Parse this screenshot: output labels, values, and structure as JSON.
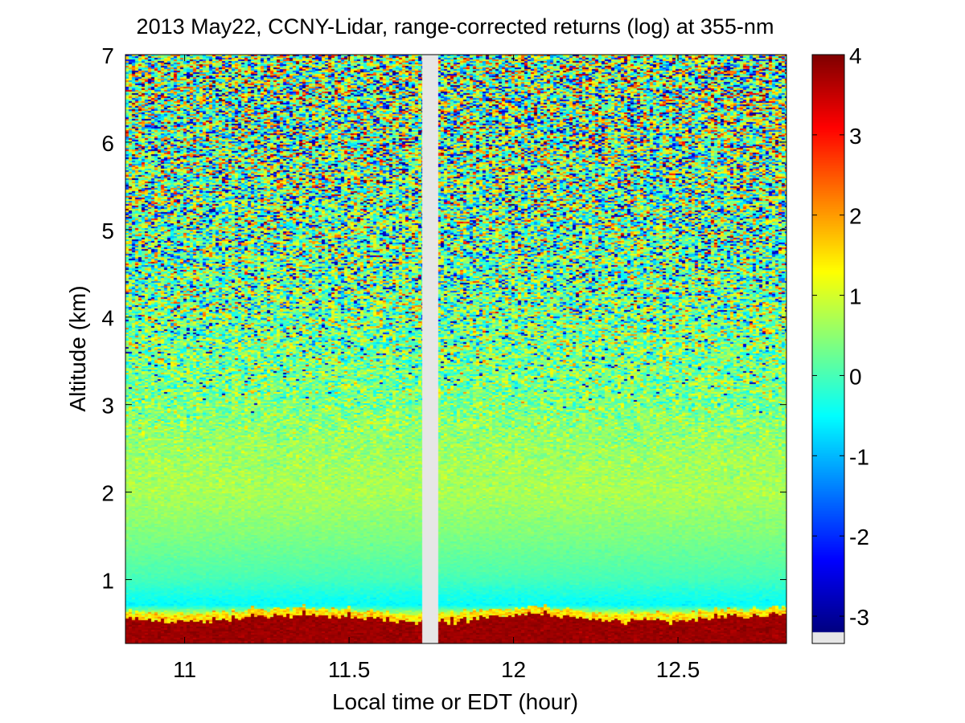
{
  "chart_data": {
    "type": "heatmap",
    "title": "2013 May22, CCNY-Lidar, range-corrected returns (log) at 355-nm",
    "xlabel": "Local time or EDT (hour)",
    "ylabel": "Altitude (km)",
    "xlim": [
      10.82,
      12.83
    ],
    "ylim": [
      0.27,
      7.0
    ],
    "x_ticks": [
      11,
      11.5,
      12,
      12.5
    ],
    "x_tick_labels": [
      "11",
      "11.5",
      "12",
      "12.5"
    ],
    "y_ticks": [
      1,
      2,
      3,
      4,
      5,
      6,
      7
    ],
    "y_tick_labels": [
      "1",
      "2",
      "3",
      "4",
      "5",
      "6",
      "7"
    ],
    "data_gap_hours": [
      11.72,
      11.77
    ],
    "colorbar": {
      "colormap": "jet",
      "clim": [
        -3.2,
        4.0
      ],
      "ticks": [
        4,
        3,
        2,
        1,
        0,
        -1,
        -2,
        -3
      ],
      "tick_labels": [
        "4",
        "3",
        "2",
        "1",
        "0",
        "-1",
        "-2",
        "-3"
      ]
    },
    "profile_description_points": {
      "altitude_km": [
        0.3,
        0.45,
        0.55,
        0.7,
        1.0,
        1.5,
        2.0,
        2.5,
        3.0,
        4.0,
        5.0,
        6.0,
        7.0
      ],
      "log_return_typical": [
        3.8,
        3.8,
        1.5,
        -0.5,
        0.0,
        0.4,
        0.7,
        0.6,
        0.4,
        0.3,
        0.3,
        0.4,
        0.5
      ],
      "noise_std": [
        0.05,
        0.1,
        0.2,
        0.1,
        0.05,
        0.08,
        0.15,
        0.25,
        0.5,
        1.0,
        1.3,
        1.5,
        1.6
      ]
    },
    "aerosol_layer_top_km": 0.55,
    "no_data_color": "#e6e6e6"
  }
}
